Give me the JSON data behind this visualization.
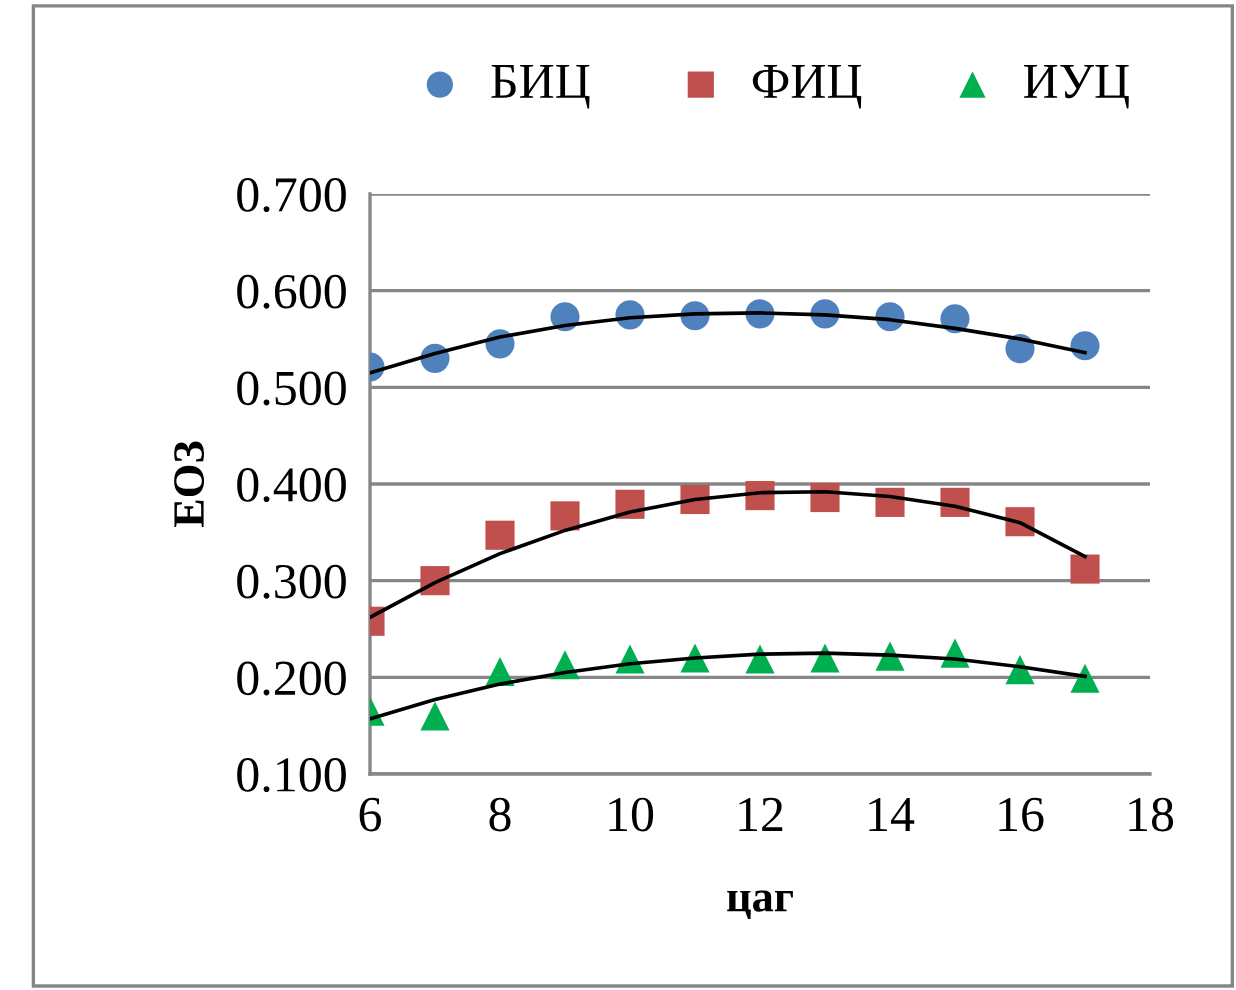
{
  "chart_data": {
    "type": "scatter",
    "xlabel": "цаг",
    "ylabel": "ЕОЗ",
    "x": [
      6,
      7,
      8,
      9,
      10,
      11,
      12,
      13,
      14,
      15,
      16,
      17
    ],
    "series": [
      {
        "name": "БИЦ",
        "color": "#4f81bd",
        "marker": "circle",
        "values": [
          0.521,
          0.53,
          0.545,
          0.573,
          0.575,
          0.574,
          0.576,
          0.576,
          0.573,
          0.571,
          0.54,
          0.543
        ]
      },
      {
        "name": "ФИЦ",
        "color": "#c0504d",
        "marker": "square",
        "values": [
          0.258,
          0.3,
          0.347,
          0.367,
          0.379,
          0.384,
          0.388,
          0.386,
          0.381,
          0.381,
          0.361,
          0.312
        ]
      },
      {
        "name": "ИУЦ",
        "color": "#00b050",
        "marker": "triangle",
        "values": [
          0.165,
          0.16,
          0.206,
          0.213,
          0.219,
          0.22,
          0.219,
          0.22,
          0.222,
          0.225,
          0.208,
          0.199
        ]
      },
      {
        "type": "line",
        "color": "#000000",
        "marker": "none",
        "line_style": "solid",
        "x": [
          6,
          7,
          8,
          9,
          10,
          11,
          12,
          13,
          14,
          15,
          16,
          17
        ],
        "values": [
          0.515,
          0.535,
          0.552,
          0.564,
          0.572,
          0.576,
          0.577,
          0.575,
          0.57,
          0.561,
          0.55,
          0.536
        ]
      },
      {
        "type": "line",
        "color": "#000000",
        "marker": "none",
        "line_style": "solid",
        "x": [
          6,
          7,
          8,
          9,
          10,
          11,
          12,
          13,
          14,
          15,
          16,
          17
        ],
        "values": [
          0.262,
          0.298,
          0.328,
          0.352,
          0.371,
          0.384,
          0.391,
          0.392,
          0.387,
          0.377,
          0.36,
          0.325
        ]
      },
      {
        "type": "line",
        "color": "#000000",
        "marker": "none",
        "line_style": "solid",
        "x": [
          6,
          7,
          8,
          9,
          10,
          11,
          12,
          13,
          14,
          15,
          16,
          17
        ],
        "values": [
          0.157,
          0.177,
          0.193,
          0.205,
          0.214,
          0.22,
          0.224,
          0.225,
          0.223,
          0.219,
          0.211,
          0.201
        ]
      }
    ],
    "xlim": [
      6,
      18
    ],
    "xticks": [
      6,
      8,
      10,
      12,
      14,
      16,
      18
    ],
    "ylim": [
      0.1,
      0.7
    ],
    "yticks": [
      {
        "value": 0.1,
        "label": "0.100"
      },
      {
        "value": 0.2,
        "label": "0.200"
      },
      {
        "value": 0.3,
        "label": "0.300"
      },
      {
        "value": 0.4,
        "label": "0.400"
      },
      {
        "value": 0.5,
        "label": "0.500"
      },
      {
        "value": 0.6,
        "label": "0.600"
      },
      {
        "value": 0.7,
        "label": "0.700"
      }
    ],
    "grid": "y",
    "legend": "top"
  }
}
